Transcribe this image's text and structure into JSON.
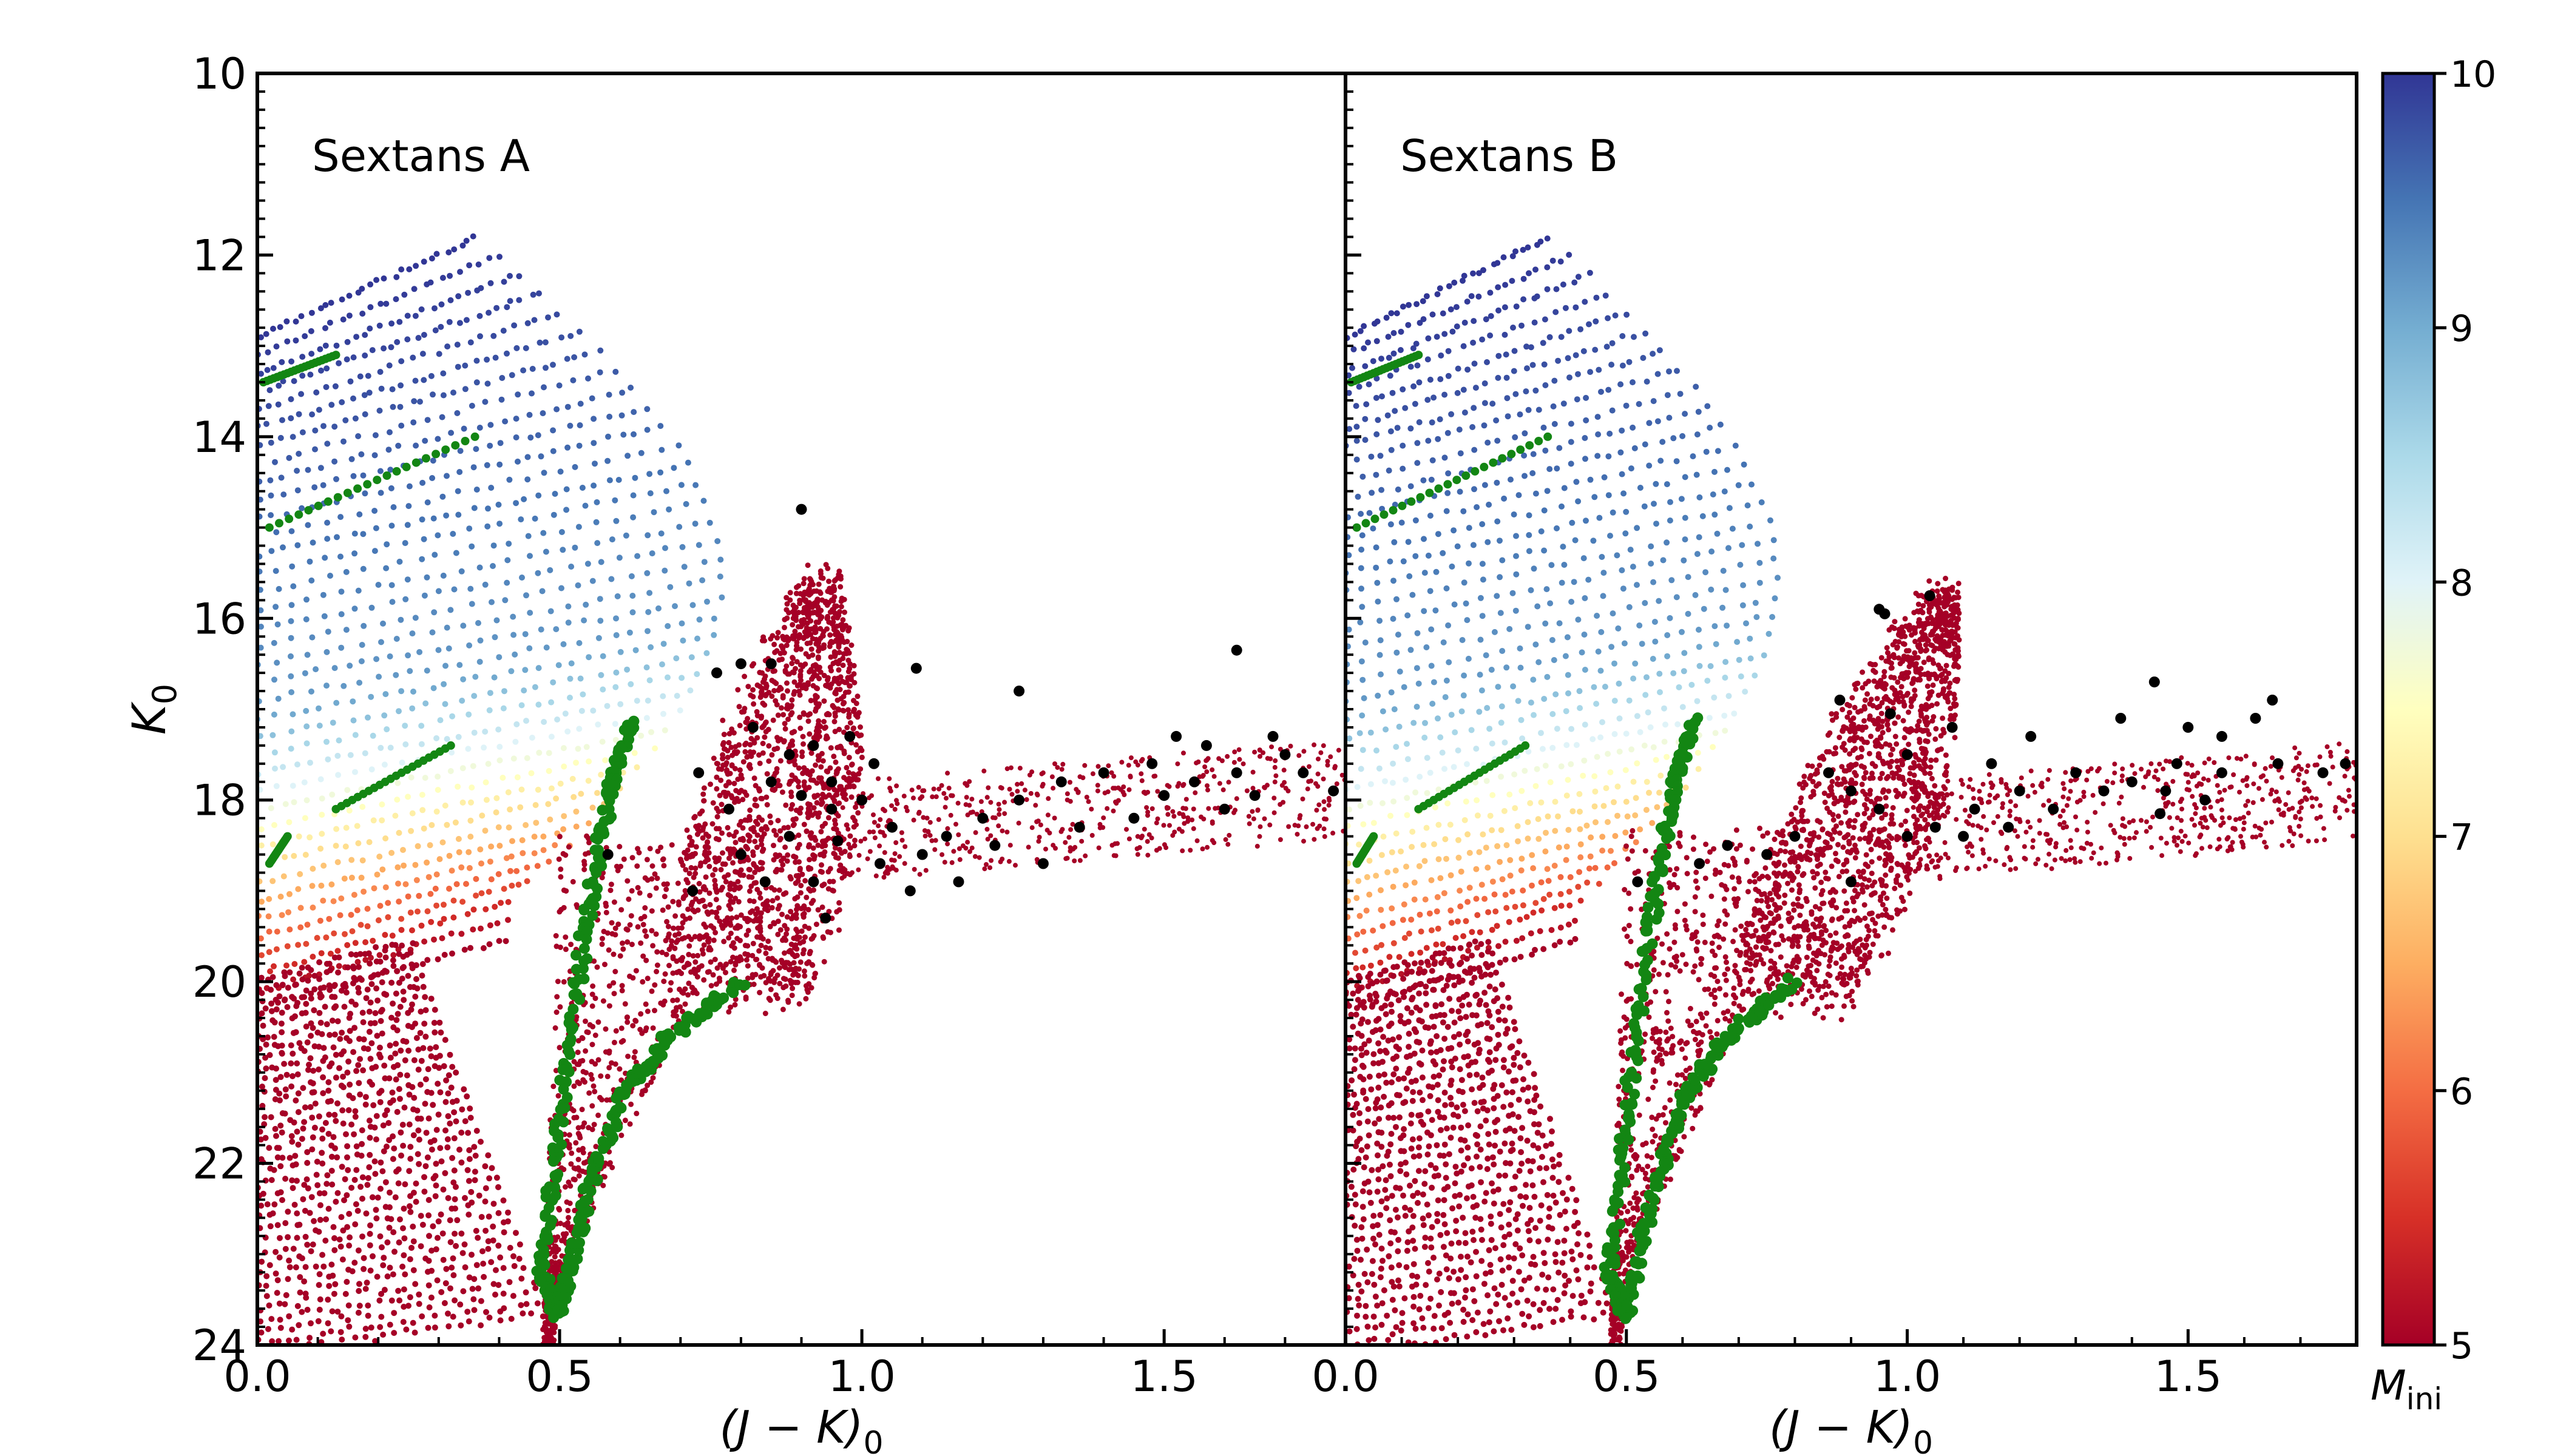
{
  "chart_data": [
    {
      "type": "scatter",
      "title": "Sextans A",
      "xlabel": "(J − K)",
      "xlabel_sub": "0",
      "ylabel": "K",
      "ylabel_sub": "0",
      "xlim": [
        0.0,
        1.8
      ],
      "ylim": [
        24,
        10
      ],
      "y_inverted": true,
      "x_ticks": [
        0.0,
        0.5,
        1.0,
        1.5
      ],
      "x_tick_labels": [
        "0.0",
        "0.5",
        "1.0",
        "1.5"
      ],
      "y_ticks": [
        10,
        12,
        14,
        16,
        18,
        20,
        22,
        24
      ],
      "y_tick_labels": [
        "10",
        "12",
        "14",
        "16",
        "18",
        "20",
        "22",
        "24"
      ],
      "grid": false,
      "series": [
        {
          "kind": "model-dots",
          "color_by": "M_ini",
          "red_giant_tongue": {
            "color": "#a50026",
            "tip": [
              0.93,
              15.6
            ],
            "base": [
              0.78,
              20.2
            ]
          },
          "agb_sequence": {
            "color": "#a50026",
            "x_range": [
              0.95,
              1.8
            ],
            "k_range": [
              17.4,
              19.0
            ]
          }
        },
        {
          "kind": "isochrone-highlight",
          "color": "#138613",
          "points": [
            {
              "x": 0.62,
              "y": 17.1
            },
            {
              "x": 0.58,
              "y": 18.0
            },
            {
              "x": 0.54,
              "y": 19.5
            },
            {
              "x": 0.5,
              "y": 21.5
            },
            {
              "x": 0.47,
              "y": 23.2
            },
            {
              "x": 0.5,
              "y": 23.7
            },
            {
              "x": 0.54,
              "y": 22.5
            },
            {
              "x": 0.6,
              "y": 21.3
            },
            {
              "x": 0.68,
              "y": 20.6
            },
            {
              "x": 0.8,
              "y": 20.0
            }
          ]
        },
        {
          "kind": "observed-stars",
          "color": "#000000",
          "points": [
            {
              "x": 0.9,
              "y": 14.8
            },
            {
              "x": 0.8,
              "y": 16.5
            },
            {
              "x": 0.85,
              "y": 16.5
            },
            {
              "x": 0.76,
              "y": 16.6
            },
            {
              "x": 1.62,
              "y": 16.35
            },
            {
              "x": 1.09,
              "y": 16.55
            },
            {
              "x": 0.82,
              "y": 17.2
            },
            {
              "x": 0.92,
              "y": 17.4
            },
            {
              "x": 0.98,
              "y": 17.3
            },
            {
              "x": 0.73,
              "y": 17.7
            },
            {
              "x": 1.26,
              "y": 16.8
            },
            {
              "x": 0.95,
              "y": 17.8
            },
            {
              "x": 0.85,
              "y": 17.8
            },
            {
              "x": 0.9,
              "y": 17.95
            },
            {
              "x": 0.78,
              "y": 18.1
            },
            {
              "x": 0.8,
              "y": 18.6
            },
            {
              "x": 0.88,
              "y": 18.4
            },
            {
              "x": 0.95,
              "y": 18.1
            },
            {
              "x": 1.0,
              "y": 18.0
            },
            {
              "x": 1.05,
              "y": 18.3
            },
            {
              "x": 1.1,
              "y": 18.6
            },
            {
              "x": 1.14,
              "y": 18.4
            },
            {
              "x": 1.2,
              "y": 18.2
            },
            {
              "x": 1.26,
              "y": 18.0
            },
            {
              "x": 1.33,
              "y": 17.8
            },
            {
              "x": 1.4,
              "y": 17.7
            },
            {
              "x": 1.48,
              "y": 17.6
            },
            {
              "x": 1.55,
              "y": 17.8
            },
            {
              "x": 1.62,
              "y": 17.7
            },
            {
              "x": 1.7,
              "y": 17.5
            },
            {
              "x": 1.78,
              "y": 17.9
            },
            {
              "x": 1.45,
              "y": 18.2
            },
            {
              "x": 1.52,
              "y": 17.3
            },
            {
              "x": 1.6,
              "y": 18.1
            },
            {
              "x": 1.68,
              "y": 17.3
            },
            {
              "x": 1.73,
              "y": 17.7
            },
            {
              "x": 0.72,
              "y": 19.0
            },
            {
              "x": 0.84,
              "y": 18.9
            },
            {
              "x": 0.92,
              "y": 18.9
            },
            {
              "x": 0.94,
              "y": 19.3
            },
            {
              "x": 0.58,
              "y": 18.6
            },
            {
              "x": 1.16,
              "y": 18.9
            },
            {
              "x": 1.3,
              "y": 18.7
            },
            {
              "x": 1.08,
              "y": 19.0
            },
            {
              "x": 1.02,
              "y": 17.6
            },
            {
              "x": 0.88,
              "y": 17.5
            },
            {
              "x": 1.22,
              "y": 18.5
            },
            {
              "x": 1.36,
              "y": 18.3
            },
            {
              "x": 1.5,
              "y": 17.95
            },
            {
              "x": 1.57,
              "y": 17.4
            },
            {
              "x": 1.65,
              "y": 17.95
            },
            {
              "x": 0.96,
              "y": 18.45
            },
            {
              "x": 1.03,
              "y": 18.7
            }
          ]
        }
      ]
    },
    {
      "type": "scatter",
      "title": "Sextans B",
      "xlabel": "(J − K)",
      "xlabel_sub": "0",
      "ylabel": "",
      "xlim": [
        0.0,
        1.8
      ],
      "ylim": [
        24,
        10
      ],
      "y_inverted": true,
      "x_ticks": [
        0.0,
        0.5,
        1.0,
        1.5
      ],
      "x_tick_labels": [
        "0.0",
        "0.5",
        "1.0",
        "1.5"
      ],
      "y_ticks": [
        10,
        12,
        14,
        16,
        18,
        20,
        22,
        24
      ],
      "grid": false,
      "series": [
        {
          "kind": "model-dots",
          "color_by": "M_ini",
          "red_giant_tongue": {
            "color": "#a50026",
            "tip": [
              1.06,
              15.75
            ],
            "base": [
              0.78,
              20.2
            ]
          },
          "agb_sequence": {
            "color": "#a50026",
            "x_range": [
              1.0,
              1.8
            ],
            "k_range": [
              17.5,
              18.8
            ]
          }
        },
        {
          "kind": "isochrone-highlight",
          "color": "#138613",
          "points": [
            {
              "x": 0.62,
              "y": 17.1
            },
            {
              "x": 0.58,
              "y": 18.0
            },
            {
              "x": 0.54,
              "y": 19.5
            },
            {
              "x": 0.5,
              "y": 21.5
            },
            {
              "x": 0.47,
              "y": 23.2
            },
            {
              "x": 0.5,
              "y": 23.7
            },
            {
              "x": 0.54,
              "y": 22.5
            },
            {
              "x": 0.6,
              "y": 21.3
            },
            {
              "x": 0.68,
              "y": 20.6
            },
            {
              "x": 0.8,
              "y": 20.0
            }
          ]
        },
        {
          "kind": "observed-stars",
          "color": "#000000",
          "points": [
            {
              "x": 0.95,
              "y": 15.9
            },
            {
              "x": 0.96,
              "y": 15.95
            },
            {
              "x": 1.04,
              "y": 15.75
            },
            {
              "x": 0.88,
              "y": 16.9
            },
            {
              "x": 1.44,
              "y": 16.7
            },
            {
              "x": 1.65,
              "y": 16.9
            },
            {
              "x": 1.62,
              "y": 17.1
            },
            {
              "x": 1.56,
              "y": 17.3
            },
            {
              "x": 1.22,
              "y": 17.3
            },
            {
              "x": 1.38,
              "y": 17.1
            },
            {
              "x": 1.5,
              "y": 17.2
            },
            {
              "x": 1.56,
              "y": 17.7
            },
            {
              "x": 1.48,
              "y": 17.6
            },
            {
              "x": 1.4,
              "y": 17.8
            },
            {
              "x": 1.3,
              "y": 17.7
            },
            {
              "x": 1.2,
              "y": 17.9
            },
            {
              "x": 1.12,
              "y": 18.1
            },
            {
              "x": 1.05,
              "y": 18.3
            },
            {
              "x": 1.0,
              "y": 18.4
            },
            {
              "x": 0.95,
              "y": 18.1
            },
            {
              "x": 0.9,
              "y": 17.9
            },
            {
              "x": 0.86,
              "y": 17.7
            },
            {
              "x": 1.0,
              "y": 17.5
            },
            {
              "x": 0.8,
              "y": 18.4
            },
            {
              "x": 0.75,
              "y": 18.6
            },
            {
              "x": 0.68,
              "y": 18.5
            },
            {
              "x": 0.63,
              "y": 18.7
            },
            {
              "x": 0.52,
              "y": 18.9
            },
            {
              "x": 0.9,
              "y": 18.9
            },
            {
              "x": 1.1,
              "y": 18.4
            },
            {
              "x": 1.18,
              "y": 18.3
            },
            {
              "x": 1.26,
              "y": 18.1
            },
            {
              "x": 1.35,
              "y": 17.9
            },
            {
              "x": 1.46,
              "y": 17.9
            },
            {
              "x": 1.53,
              "y": 18.0
            },
            {
              "x": 1.45,
              "y": 18.15
            },
            {
              "x": 1.66,
              "y": 17.6
            },
            {
              "x": 1.74,
              "y": 17.7
            },
            {
              "x": 1.78,
              "y": 17.6
            },
            {
              "x": 1.08,
              "y": 17.2
            },
            {
              "x": 0.97,
              "y": 17.05
            },
            {
              "x": 1.15,
              "y": 17.6
            }
          ]
        }
      ]
    }
  ],
  "colorbar": {
    "label": "M",
    "label_sub": "ini",
    "min": 5,
    "max": 10,
    "ticks": [
      "5",
      "6",
      "7",
      "8",
      "9",
      "10"
    ],
    "colormap": "RdYlBu",
    "stops": [
      "#a50026",
      "#d73027",
      "#f46d43",
      "#fdae61",
      "#fee090",
      "#ffffbf",
      "#e0f3f8",
      "#abd9e9",
      "#74add1",
      "#4575b4",
      "#313695"
    ]
  }
}
